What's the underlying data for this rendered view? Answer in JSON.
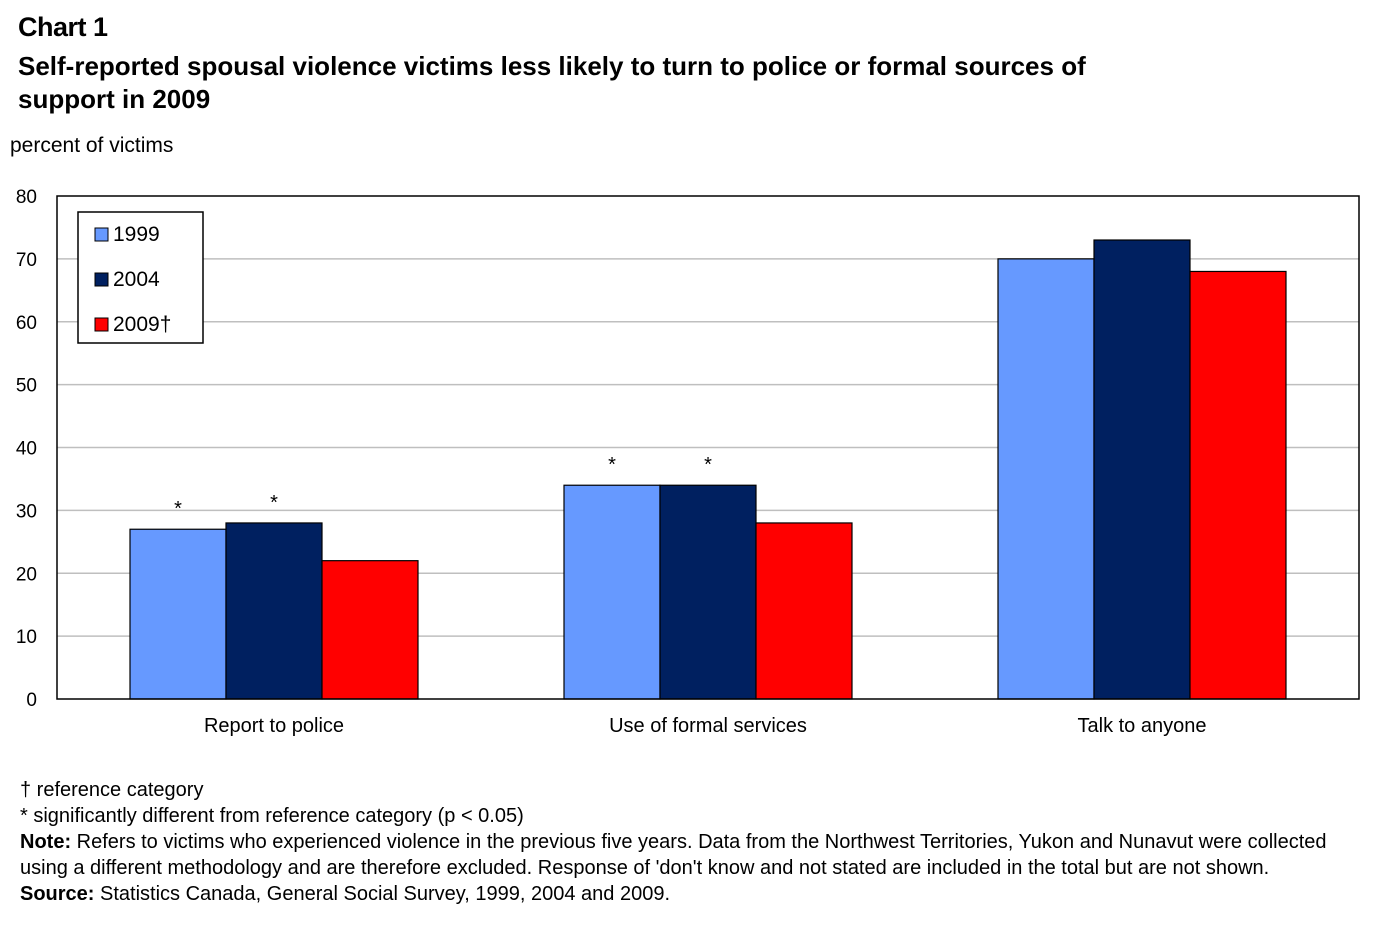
{
  "chart_label": "Chart 1",
  "title": "Self-reported spousal violence victims less likely to turn to police or formal sources of support in 2009",
  "footnotes": {
    "reference": "† reference category",
    "significance": "* significantly different from reference category (p < 0.05)",
    "note_label": "Note:",
    "note_text": " Refers to victims who experienced violence in the previous five years. Data from the Northwest Territories, Yukon and Nunavut were collected using a different methodology and are therefore excluded. Response of 'don't know and not stated are included in the total but are not shown.",
    "source_label": "Source:",
    "source_text": " Statistics Canada, General Social Survey, 1999, 2004 and 2009."
  },
  "chart_data": {
    "type": "bar",
    "ylabel": "percent of victims",
    "xlabel": "",
    "ylim": [
      0,
      80
    ],
    "yticks": [
      0,
      10,
      20,
      30,
      40,
      50,
      60,
      70,
      80
    ],
    "grid": true,
    "legend_position": "top-left",
    "categories": [
      "Report to police",
      "Use of formal services",
      "Talk to anyone"
    ],
    "series": [
      {
        "name": "1999",
        "color": "#6699ff",
        "values": [
          27,
          34,
          70
        ],
        "markers": [
          "*",
          "*",
          ""
        ]
      },
      {
        "name": "2004",
        "color": "#002060",
        "values": [
          28,
          34,
          73
        ],
        "markers": [
          "*",
          "*",
          ""
        ]
      },
      {
        "name": "2009†",
        "color": "#ff0000",
        "values": [
          22,
          28,
          68
        ],
        "markers": [
          "",
          "",
          ""
        ]
      }
    ]
  }
}
